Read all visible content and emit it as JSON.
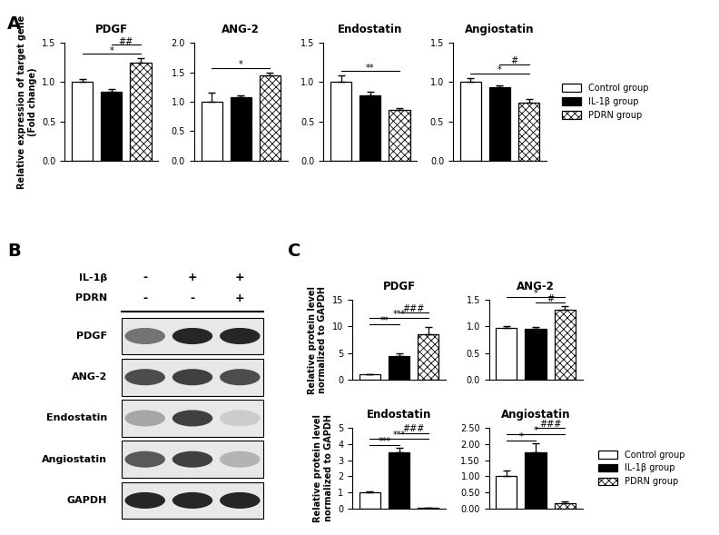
{
  "panel_labels": [
    "A",
    "B",
    "C"
  ],
  "chart_data": [
    {
      "type": "bar",
      "title": "PDGF",
      "y_label": "Relative expression of target gene\n(Fold change)",
      "tick_labels": "y",
      "ylim": [
        0,
        1.5
      ],
      "yticks": [
        {
          "value": 0,
          "label": "0.0"
        },
        {
          "value": 0.5,
          "label": "0.5"
        },
        {
          "value": 1.0,
          "label": "1.0"
        },
        {
          "value": 1.5,
          "label": "1.5"
        }
      ],
      "series": [
        {
          "name": "Control group",
          "color": "#ffffff",
          "values": [
            1.0
          ],
          "error": [
            0.04
          ]
        },
        {
          "name": "IL-1β group",
          "color": "#000000",
          "values": [
            0.88
          ],
          "error": [
            0.03
          ]
        },
        {
          "name": "PDRN group",
          "color": "#ffffff",
          "values": [
            1.25
          ],
          "error": [
            0.05
          ]
        }
      ],
      "significance": [
        {
          "groups": [
            0,
            2
          ],
          "label": "*"
        },
        {
          "groups": [
            1,
            2
          ],
          "label": "##"
        }
      ]
    },
    {
      "type": "bar",
      "title": "ANG-2",
      "tick_labels": "y",
      "ylim": [
        0,
        2.0
      ],
      "yticks": [
        {
          "value": 0,
          "label": "0.0"
        },
        {
          "value": 0.5,
          "label": "0.5"
        },
        {
          "value": 1.0,
          "label": "1.0"
        },
        {
          "value": 1.5,
          "label": "1.5"
        },
        {
          "value": 2.0,
          "label": "2.0"
        }
      ],
      "series": [
        {
          "name": "Control group",
          "color": "#ffffff",
          "values": [
            1.0
          ],
          "error": [
            0.15
          ]
        },
        {
          "name": "IL-1β group",
          "color": "#000000",
          "values": [
            1.08
          ],
          "error": [
            0.03
          ]
        },
        {
          "name": "PDRN group",
          "color": "#ffffff",
          "values": [
            1.45
          ],
          "error": [
            0.04
          ]
        }
      ],
      "significance": [
        {
          "groups": [
            0,
            2
          ],
          "label": "*"
        }
      ]
    },
    {
      "type": "bar",
      "title": "Endostatin",
      "tick_labels": "y",
      "ylim": [
        0,
        1.5
      ],
      "yticks": [
        {
          "value": 0,
          "label": "0.0"
        },
        {
          "value": 0.5,
          "label": "0.5"
        },
        {
          "value": 1.0,
          "label": "1.0"
        },
        {
          "value": 1.5,
          "label": "1.5"
        }
      ],
      "series": [
        {
          "name": "Control group",
          "color": "#ffffff",
          "values": [
            1.0
          ],
          "error": [
            0.08
          ]
        },
        {
          "name": "IL-1β group",
          "color": "#000000",
          "values": [
            0.83
          ],
          "error": [
            0.05
          ]
        },
        {
          "name": "PDRN group",
          "color": "#ffffff",
          "values": [
            0.65
          ],
          "error": [
            0.02
          ]
        }
      ],
      "significance": [
        {
          "groups": [
            0,
            2
          ],
          "label": "**"
        }
      ]
    },
    {
      "type": "bar",
      "title": "Angiostatin",
      "tick_labels": "y",
      "ylim": [
        0,
        1.5
      ],
      "legend": "center left",
      "yticks": [
        {
          "value": 0,
          "label": "0.0"
        },
        {
          "value": 0.5,
          "label": "0.5"
        },
        {
          "value": 1.0,
          "label": "1.0"
        },
        {
          "value": 1.5,
          "label": "1.5"
        }
      ],
      "series": [
        {
          "name": "Control group",
          "color": "#ffffff",
          "values": [
            1.0
          ],
          "error": [
            0.05
          ]
        },
        {
          "name": "IL-1β group",
          "color": "#000000",
          "values": [
            0.93
          ],
          "error": [
            0.03
          ]
        },
        {
          "name": "PDRN group",
          "color": "#ffffff",
          "values": [
            0.74
          ],
          "error": [
            0.04
          ]
        }
      ],
      "significance": [
        {
          "groups": [
            0,
            2
          ],
          "label": "*"
        },
        {
          "groups": [
            1,
            2
          ],
          "label": "#"
        }
      ]
    },
    {
      "type": "bar",
      "title": "PDGF",
      "y_label": "Relative protein level\nnormalized to GAPDH",
      "tick_labels": "y",
      "ylim": [
        0,
        15
      ],
      "yticks": [
        0,
        5,
        10,
        15
      ],
      "series": [
        {
          "name": "Control group",
          "color": "#ffffff",
          "values": [
            1.0
          ],
          "error": [
            0.1
          ]
        },
        {
          "name": "IL-1β group",
          "color": "#000000",
          "values": [
            4.4
          ],
          "error": [
            0.5
          ]
        },
        {
          "name": "PDRN group",
          "color": "#ffffff",
          "values": [
            8.6
          ],
          "error": [
            1.2
          ]
        }
      ],
      "significance": [
        {
          "groups": [
            0,
            1
          ],
          "label": "**"
        },
        {
          "groups": [
            0,
            2
          ],
          "label": "***"
        },
        {
          "groups": [
            1,
            2
          ],
          "label": "###"
        }
      ]
    },
    {
      "type": "bar",
      "title": "ANG-2",
      "tick_labels": "y",
      "ylim": [
        0,
        1.5
      ],
      "yticks": [
        {
          "value": 0,
          "label": "0.0"
        },
        {
          "value": 0.5,
          "label": "0.5"
        },
        {
          "value": 1.0,
          "label": "1.0"
        },
        {
          "value": 1.5,
          "label": "1.5"
        }
      ],
      "series": [
        {
          "name": "Control group",
          "color": "#ffffff",
          "values": [
            0.97
          ],
          "error": [
            0.03
          ]
        },
        {
          "name": "IL-1β group",
          "color": "#000000",
          "values": [
            0.95
          ],
          "error": [
            0.04
          ]
        },
        {
          "name": "PDRN group",
          "color": "#ffffff",
          "values": [
            1.31
          ],
          "error": [
            0.07
          ]
        }
      ],
      "significance": [
        {
          "groups": [
            1,
            2
          ],
          "label": "#"
        },
        {
          "groups": [
            0,
            2
          ],
          "label": "*"
        }
      ]
    },
    {
      "type": "bar",
      "title": "Endostatin",
      "y_label": "Relative protein level\nnormalized to GAPDH",
      "tick_labels": "y",
      "ylim": [
        0,
        5
      ],
      "yticks": [
        0,
        1,
        2,
        3,
        4,
        5
      ],
      "series": [
        {
          "name": "Control group",
          "color": "#ffffff",
          "values": [
            1.0
          ],
          "error": [
            0.05
          ]
        },
        {
          "name": "IL-1β group",
          "color": "#000000",
          "values": [
            3.5
          ],
          "error": [
            0.25
          ]
        },
        {
          "name": "PDRN group",
          "color": "#ffffff",
          "values": [
            0.03
          ],
          "error": [
            0.01
          ]
        }
      ],
      "significance": [
        {
          "groups": [
            0,
            1
          ],
          "label": "***"
        },
        {
          "groups": [
            0,
            2
          ],
          "label": "***"
        },
        {
          "groups": [
            1,
            2
          ],
          "label": "###"
        }
      ]
    },
    {
      "type": "bar",
      "title": "Angiostatin",
      "tick_labels": "y",
      "ylim": [
        0,
        2.5
      ],
      "legend": "center left",
      "yticks": [
        {
          "value": 0,
          "label": "0.00"
        },
        {
          "value": 0.5,
          "label": "0.50"
        },
        {
          "value": 1.0,
          "label": "1.00"
        },
        {
          "value": 1.5,
          "label": "1.50"
        },
        {
          "value": 2.0,
          "label": "2.00"
        },
        {
          "value": 2.5,
          "label": "2.50"
        }
      ],
      "series": [
        {
          "name": "Control group",
          "color": "#ffffff",
          "values": [
            1.0
          ],
          "error": [
            0.18
          ]
        },
        {
          "name": "IL-1β group",
          "color": "#000000",
          "values": [
            1.75
          ],
          "error": [
            0.27
          ]
        },
        {
          "name": "PDRN group",
          "color": "#ffffff",
          "values": [
            0.15
          ],
          "error": [
            0.05
          ]
        }
      ],
      "significance": [
        {
          "groups": [
            0,
            1
          ],
          "label": "*"
        },
        {
          "groups": [
            0,
            2
          ],
          "label": "*"
        },
        {
          "groups": [
            1,
            2
          ],
          "label": "###"
        }
      ]
    }
  ],
  "blot": {
    "conditions": [
      {
        "name": "IL-1β",
        "marks": [
          "-",
          "+",
          "+"
        ]
      },
      {
        "name": "PDRN",
        "marks": [
          "-",
          "-",
          "+"
        ]
      }
    ],
    "rows": [
      {
        "name": "PDGF",
        "bands": [
          0.55,
          0.85,
          0.85
        ]
      },
      {
        "name": "ANG-2",
        "bands": [
          0.7,
          0.75,
          0.7
        ]
      },
      {
        "name": "Endostatin",
        "bands": [
          0.35,
          0.75,
          0.2
        ]
      },
      {
        "name": "Angiostatin",
        "bands": [
          0.65,
          0.75,
          0.3
        ]
      },
      {
        "name": "GAPDH",
        "bands": [
          0.85,
          0.85,
          0.85
        ]
      }
    ]
  }
}
